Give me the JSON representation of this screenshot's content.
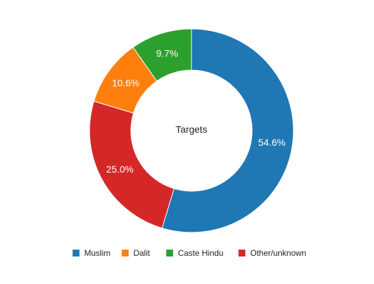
{
  "chart_data": {
    "type": "pie",
    "center_label": "Targets",
    "slices": [
      {
        "name": "Muslim",
        "value": 54.6,
        "label": "54.6%",
        "color": "#1f77b4"
      },
      {
        "name": "Other/unknown",
        "value": 25.0,
        "label": "25.0%",
        "color": "#d62728"
      },
      {
        "name": "Dalit",
        "value": 10.6,
        "label": "10.6%",
        "color": "#ff7f0e"
      },
      {
        "name": "Caste Hindu",
        "value": 9.7,
        "label": "9.7%",
        "color": "#2ca02c"
      }
    ],
    "legend": {
      "placement": "bottom",
      "entries": [
        "Muslim",
        "Dalit",
        "Caste Hindu",
        "Other/unknown"
      ]
    }
  }
}
